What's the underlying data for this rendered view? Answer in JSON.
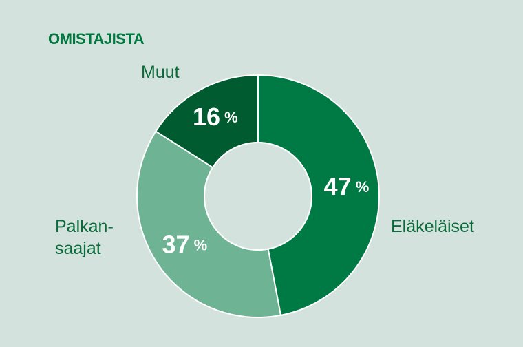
{
  "chart_data": {
    "type": "donut",
    "title": "OMISTAJISTA",
    "categories": [
      "Eläkeläiset",
      "Palkan-\nsaajat",
      "Muut"
    ],
    "values": [
      47,
      37,
      16
    ],
    "value_labels": [
      "47 %",
      "37 %",
      "16 %"
    ],
    "colors": [
      "#007a45",
      "#6db394",
      "#005c30"
    ]
  }
}
